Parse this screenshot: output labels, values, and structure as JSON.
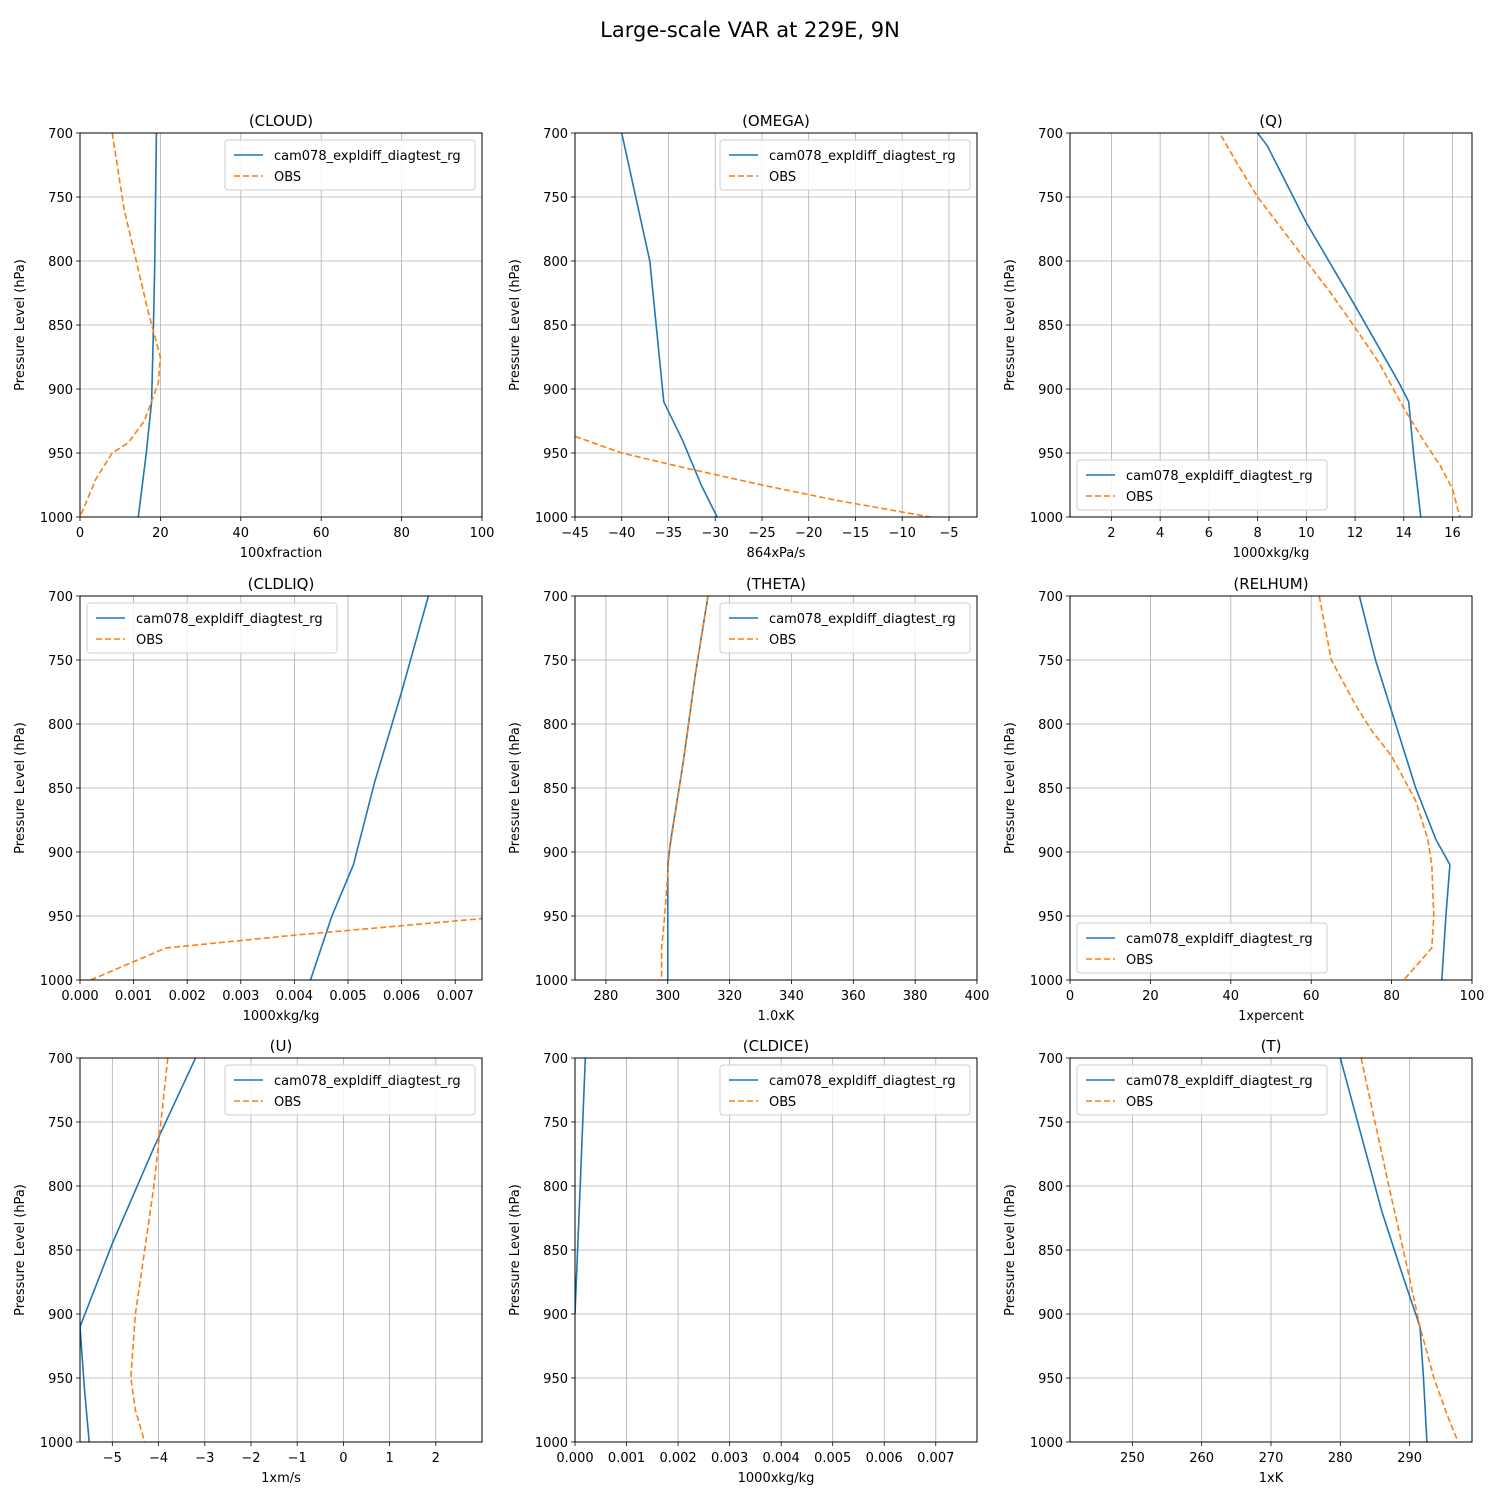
{
  "title": "Large-scale VAR at 229E, 9N",
  "colors": {
    "model": "#1f77b4",
    "obs": "#ff7f0e",
    "grid": "#b0b0b0",
    "axes": "#000000"
  },
  "chart_data": [
    {
      "type": "line",
      "title": "(CLOUD)",
      "xlabel": "100xfraction",
      "ylabel": "Pressure Level (hPa)",
      "xlim": [
        0,
        100
      ],
      "ylim": [
        1000,
        700
      ],
      "xticks": [
        0,
        20,
        40,
        60,
        80,
        100
      ],
      "yticks": [
        700,
        750,
        800,
        850,
        900,
        950,
        1000
      ],
      "grid": true,
      "legend": "upper-right",
      "series": [
        {
          "name": "cam078_expldiff_diagtest_rg",
          "style": "solid",
          "points": [
            [
              19,
              700
            ],
            [
              18.6,
              800
            ],
            [
              18.2,
              860
            ],
            [
              17.8,
              910
            ],
            [
              16.5,
              950
            ],
            [
              14.5,
              1000
            ]
          ]
        },
        {
          "name": "OBS",
          "style": "dashed",
          "points": [
            [
              8,
              700
            ],
            [
              11,
              760
            ],
            [
              14,
              800
            ],
            [
              17,
              840
            ],
            [
              20,
              875
            ],
            [
              19.5,
              895
            ],
            [
              16,
              925
            ],
            [
              12,
              942
            ],
            [
              8,
              950
            ],
            [
              4,
              970
            ],
            [
              2,
              985
            ],
            [
              0,
              1000
            ]
          ]
        }
      ]
    },
    {
      "type": "line",
      "title": "(OMEGA)",
      "xlabel": "864xPa/s",
      "ylabel": "Pressure Level (hPa)",
      "xlim": [
        -45,
        -2
      ],
      "ylim": [
        1000,
        700
      ],
      "xticks": [
        -45,
        -40,
        -35,
        -30,
        -25,
        -20,
        -15,
        -10,
        -5
      ],
      "yticks": [
        700,
        750,
        800,
        850,
        900,
        950,
        1000
      ],
      "grid": true,
      "legend": "upper-right",
      "series": [
        {
          "name": "cam078_expldiff_diagtest_rg",
          "style": "solid",
          "points": [
            [
              -40,
              700
            ],
            [
              -37,
              800
            ],
            [
              -35.5,
              910
            ],
            [
              -33.5,
              940
            ],
            [
              -31.5,
              975
            ],
            [
              -29.8,
              1000
            ]
          ]
        },
        {
          "name": "OBS",
          "style": "dashed",
          "points": [
            [
              -45,
              937
            ],
            [
              -40,
              950
            ],
            [
              -33,
              962
            ],
            [
              -25,
              975
            ],
            [
              -17,
              987
            ],
            [
              -7,
              1000
            ]
          ]
        }
      ]
    },
    {
      "type": "line",
      "title": "(Q)",
      "xlabel": "1000xkg/kg",
      "ylabel": "Pressure Level (hPa)",
      "xlim": [
        0.3,
        16.8
      ],
      "ylim": [
        1000,
        700
      ],
      "xticks": [
        2,
        4,
        6,
        8,
        10,
        12,
        14,
        16
      ],
      "yticks": [
        700,
        750,
        800,
        850,
        900,
        950,
        1000
      ],
      "grid": true,
      "legend": "lower-left",
      "series": [
        {
          "name": "cam078_expldiff_diagtest_rg",
          "style": "solid",
          "points": [
            [
              8,
              700
            ],
            [
              8.4,
              710
            ],
            [
              10,
              770
            ],
            [
              12,
              835
            ],
            [
              13.8,
              895
            ],
            [
              14.2,
              910
            ],
            [
              14.4,
              950
            ],
            [
              14.7,
              1000
            ]
          ]
        },
        {
          "name": "OBS",
          "style": "dashed",
          "points": [
            [
              6.5,
              702
            ],
            [
              7.2,
              725
            ],
            [
              8,
              750
            ],
            [
              9,
              775
            ],
            [
              10,
              800
            ],
            [
              11,
              825
            ],
            [
              12,
              852
            ],
            [
              13,
              880
            ],
            [
              14,
              915
            ],
            [
              14.8,
              940
            ],
            [
              15.5,
              960
            ],
            [
              16,
              978
            ],
            [
              16.3,
              1000
            ]
          ]
        }
      ]
    },
    {
      "type": "line",
      "title": "(CLDLIQ)",
      "xlabel": "1000xkg/kg",
      "ylabel": "Pressure Level (hPa)",
      "xlim": [
        0,
        0.0075
      ],
      "ylim": [
        1000,
        700
      ],
      "xticks": [
        0,
        0.001,
        0.002,
        0.003,
        0.004,
        0.005,
        0.006,
        0.007
      ],
      "xtick_labels": [
        "0.000",
        "0.001",
        "0.002",
        "0.003",
        "0.004",
        "0.005",
        "0.006",
        "0.007"
      ],
      "yticks": [
        700,
        750,
        800,
        850,
        900,
        950,
        1000
      ],
      "grid": true,
      "legend": "upper-left",
      "series": [
        {
          "name": "cam078_expldiff_diagtest_rg",
          "style": "solid",
          "points": [
            [
              0.0065,
              700
            ],
            [
              0.006,
              775
            ],
            [
              0.0055,
              845
            ],
            [
              0.0051,
              910
            ],
            [
              0.0047,
              950
            ],
            [
              0.0043,
              1000
            ]
          ]
        },
        {
          "name": "OBS",
          "style": "dashed",
          "points": [
            [
              0.0002,
              1000
            ],
            [
              0.0016,
              975
            ],
            [
              0.004,
              965
            ],
            [
              0.0075,
              952
            ]
          ]
        }
      ]
    },
    {
      "type": "line",
      "title": "(THETA)",
      "xlabel": "1.0xK",
      "ylabel": "Pressure Level (hPa)",
      "xlim": [
        270,
        400
      ],
      "ylim": [
        1000,
        700
      ],
      "xticks": [
        280,
        300,
        320,
        340,
        360,
        380,
        400
      ],
      "yticks": [
        700,
        750,
        800,
        850,
        900,
        950,
        1000
      ],
      "grid": true,
      "legend": "upper-right",
      "series": [
        {
          "name": "cam078_expldiff_diagtest_rg",
          "style": "solid",
          "points": [
            [
              313,
              700
            ],
            [
              309,
              760
            ],
            [
              305,
              830
            ],
            [
              301,
              890
            ],
            [
              300,
              910
            ],
            [
              300,
              1000
            ]
          ]
        },
        {
          "name": "OBS",
          "style": "dashed",
          "points": [
            [
              313,
              700
            ],
            [
              309,
              760
            ],
            [
              305,
              830
            ],
            [
              300.5,
              900
            ],
            [
              299,
              950
            ],
            [
              298,
              975
            ],
            [
              298,
              1000
            ]
          ]
        }
      ]
    },
    {
      "type": "line",
      "title": "(RELHUM)",
      "xlabel": "1xpercent",
      "ylabel": "Pressure Level (hPa)",
      "xlim": [
        0,
        100
      ],
      "ylim": [
        1000,
        700
      ],
      "xticks": [
        0,
        20,
        40,
        60,
        80,
        100
      ],
      "yticks": [
        700,
        750,
        800,
        850,
        900,
        950,
        1000
      ],
      "grid": true,
      "legend": "lower-left",
      "series": [
        {
          "name": "cam078_expldiff_diagtest_rg",
          "style": "solid",
          "points": [
            [
              72,
              700
            ],
            [
              76,
              750
            ],
            [
              81,
              800
            ],
            [
              86,
              850
            ],
            [
              91,
              890
            ],
            [
              94.5,
              910
            ],
            [
              93.5,
              950
            ],
            [
              92.5,
              1000
            ]
          ]
        },
        {
          "name": "OBS",
          "style": "dashed",
          "points": [
            [
              62,
              700
            ],
            [
              65,
              750
            ],
            [
              71,
              785
            ],
            [
              75,
              805
            ],
            [
              80,
              825
            ],
            [
              86,
              860
            ],
            [
              89,
              890
            ],
            [
              90,
              910
            ],
            [
              90.5,
              950
            ],
            [
              90,
              975
            ],
            [
              83,
              1000
            ]
          ]
        }
      ]
    },
    {
      "type": "line",
      "title": "(U)",
      "xlabel": "1xm/s",
      "ylabel": "Pressure Level (hPa)",
      "xlim": [
        -5.7,
        3
      ],
      "ylim": [
        1000,
        700
      ],
      "xticks": [
        -5,
        -4,
        -3,
        -2,
        -1,
        0,
        1,
        2
      ],
      "yticks": [
        700,
        750,
        800,
        850,
        900,
        950,
        1000
      ],
      "grid": true,
      "legend": "upper-right",
      "series": [
        {
          "name": "cam078_expldiff_diagtest_rg",
          "style": "solid",
          "points": [
            [
              -3.2,
              700
            ],
            [
              -4.1,
              770
            ],
            [
              -5,
              845
            ],
            [
              -5.7,
              910
            ],
            [
              -5.6,
              960
            ],
            [
              -5.5,
              1000
            ]
          ]
        },
        {
          "name": "OBS",
          "style": "dashed",
          "points": [
            [
              -3.8,
              700
            ],
            [
              -3.95,
              750
            ],
            [
              -4.1,
              800
            ],
            [
              -4.3,
              850
            ],
            [
              -4.5,
              900
            ],
            [
              -4.6,
              950
            ],
            [
              -4.5,
              975
            ],
            [
              -4.3,
              1000
            ]
          ]
        }
      ]
    },
    {
      "type": "line",
      "title": "(CLDICE)",
      "xlabel": "1000xkg/kg",
      "ylabel": "Pressure Level (hPa)",
      "xlim": [
        0,
        0.0078
      ],
      "ylim": [
        1000,
        700
      ],
      "xticks": [
        0,
        0.001,
        0.002,
        0.003,
        0.004,
        0.005,
        0.006,
        0.007
      ],
      "xtick_labels": [
        "0.000",
        "0.001",
        "0.002",
        "0.003",
        "0.004",
        "0.005",
        "0.006",
        "0.007"
      ],
      "yticks": [
        700,
        750,
        800,
        850,
        900,
        950,
        1000
      ],
      "grid": true,
      "legend": "upper-right",
      "series": [
        {
          "name": "cam078_expldiff_diagtest_rg",
          "style": "solid",
          "points": [
            [
              0.0002,
              700
            ],
            [
              0.0001,
              800
            ],
            [
              0,
              900
            ]
          ]
        },
        {
          "name": "OBS",
          "style": "dashed",
          "points": []
        }
      ]
    },
    {
      "type": "line",
      "title": "(T)",
      "xlabel": "1xK",
      "ylabel": "Pressure Level (hPa)",
      "xlim": [
        241,
        299
      ],
      "ylim": [
        1000,
        700
      ],
      "xticks": [
        250,
        260,
        270,
        280,
        290
      ],
      "yticks": [
        700,
        750,
        800,
        850,
        900,
        950,
        1000
      ],
      "grid": true,
      "legend": "upper-left",
      "series": [
        {
          "name": "cam078_expldiff_diagtest_rg",
          "style": "solid",
          "points": [
            [
              280,
              700
            ],
            [
              283,
              760
            ],
            [
              286,
              820
            ],
            [
              289,
              870
            ],
            [
              291.5,
              910
            ],
            [
              292,
              950
            ],
            [
              292.5,
              1000
            ]
          ]
        },
        {
          "name": "OBS",
          "style": "dashed",
          "points": [
            [
              283,
              700
            ],
            [
              285,
              750
            ],
            [
              287,
              800
            ],
            [
              289.5,
              860
            ],
            [
              291.5,
              910
            ],
            [
              293.5,
              950
            ],
            [
              295.5,
              980
            ],
            [
              297,
              1000
            ]
          ]
        }
      ]
    }
  ]
}
